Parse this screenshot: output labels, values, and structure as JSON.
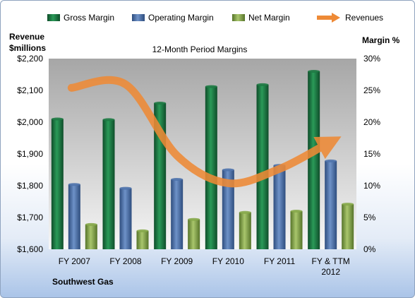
{
  "chart_data": {
    "type": "bar",
    "title": "12-Month Period Margins",
    "company": "Southwest Gas",
    "left_axis_label": [
      "Revenue",
      "$millions"
    ],
    "right_axis_label": "Margin %",
    "categories": [
      [
        "FY 2007"
      ],
      [
        "FY 2008"
      ],
      [
        "FY 2009"
      ],
      [
        "FY 2010"
      ],
      [
        "FY 2011"
      ],
      [
        "FY & TTM",
        "2012"
      ]
    ],
    "left_axis": {
      "min": 1600,
      "max": 2200,
      "step": 100,
      "ticks": [
        "$1,600",
        "$1,700",
        "$1,800",
        "$1,900",
        "$2,000",
        "$2,100",
        "$2,200"
      ]
    },
    "right_axis": {
      "min": 0,
      "max": 30,
      "step": 5,
      "ticks": [
        "0%",
        "5%",
        "10%",
        "15%",
        "20%",
        "25%",
        "30%"
      ]
    },
    "series": [
      {
        "name": "Gross Margin",
        "axis": "right",
        "color": "#1e7a44",
        "values": [
          20.5,
          20.4,
          23.0,
          25.6,
          25.9,
          28.0
        ]
      },
      {
        "name": "Operating Margin",
        "axis": "right",
        "color": "#4f73ac",
        "values": [
          10.2,
          9.6,
          11.0,
          12.5,
          13.2,
          13.9
        ]
      },
      {
        "name": "Net Margin",
        "axis": "right",
        "color": "#86a84a",
        "values": [
          3.9,
          2.9,
          4.7,
          5.8,
          6.0,
          7.1
        ]
      },
      {
        "name": "Revenues",
        "axis": "left",
        "color": "#ee8a36",
        "type": "line",
        "values": [
          2108,
          2119,
          1895,
          1808,
          1853,
          1926
        ]
      }
    ],
    "legend_position": "top",
    "grid": false
  }
}
